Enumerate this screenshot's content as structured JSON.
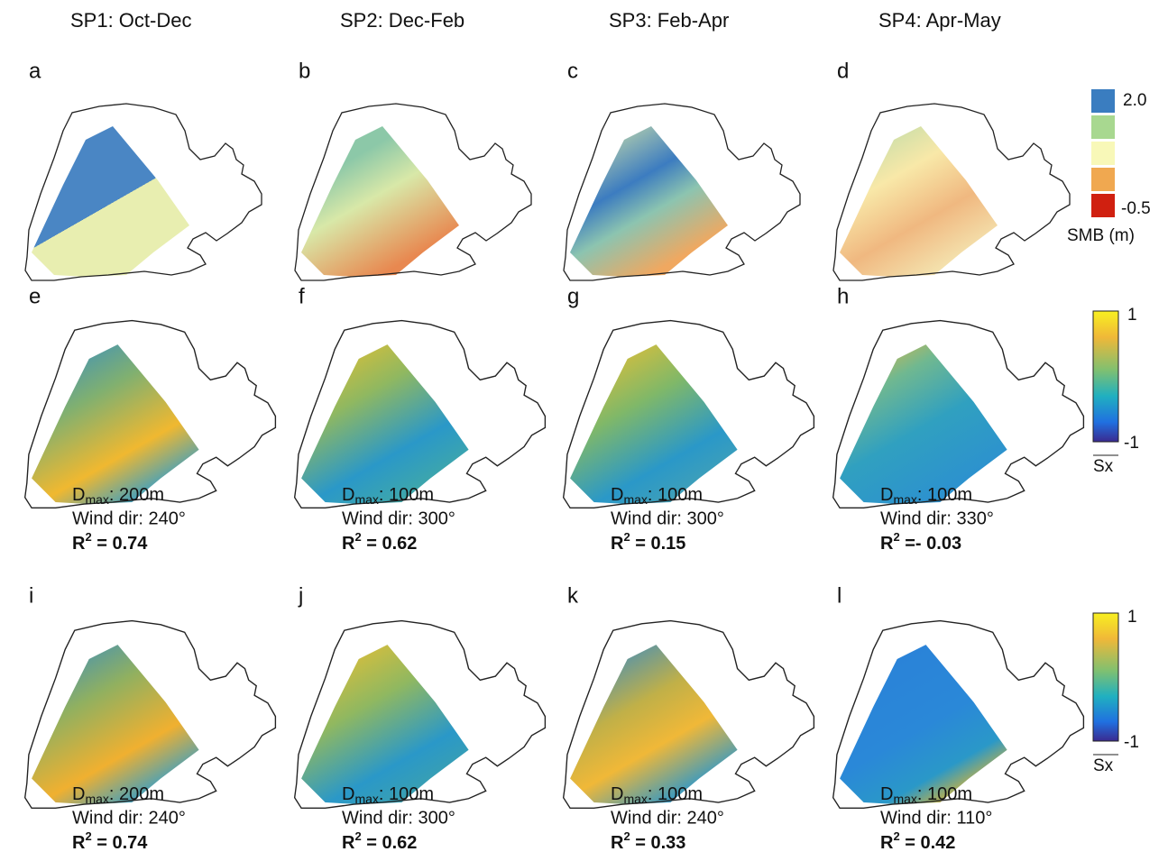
{
  "columns": [
    {
      "title": "SP1: Oct-Dec"
    },
    {
      "title": "SP2: Dec-Feb"
    },
    {
      "title": "SP3: Feb-Apr"
    },
    {
      "title": "SP4: Apr-May"
    }
  ],
  "panels": [
    {
      "label": "a"
    },
    {
      "label": "b"
    },
    {
      "label": "c"
    },
    {
      "label": "d"
    },
    {
      "label": "e"
    },
    {
      "label": "f"
    },
    {
      "label": "g"
    },
    {
      "label": "h"
    },
    {
      "label": "i"
    },
    {
      "label": "j"
    },
    {
      "label": "k"
    },
    {
      "label": "l"
    }
  ],
  "captions": [
    {
      "dmax_prefix": "D",
      "dmax_sub": "max",
      "dmax_rest": ": 200m",
      "wind": "Wind dir: 240°",
      "r2_prefix": "R",
      "r2_sup": "2",
      "r2_rest": " = 0.74"
    },
    {
      "dmax_prefix": "D",
      "dmax_sub": "max",
      "dmax_rest": ": 100m",
      "wind": "Wind dir: 300°",
      "r2_prefix": "R",
      "r2_sup": "2",
      "r2_rest": " = 0.62"
    },
    {
      "dmax_prefix": "D",
      "dmax_sub": "max",
      "dmax_rest": ": 100m",
      "wind": "Wind dir: 300°",
      "r2_prefix": "R",
      "r2_sup": "2",
      "r2_rest": " = 0.15"
    },
    {
      "dmax_prefix": "D",
      "dmax_sub": "max",
      "dmax_rest": ": 100m",
      "wind": "Wind dir: 330°",
      "r2_prefix": "R",
      "r2_sup": "2",
      "r2_rest": " =- 0.03"
    },
    {
      "dmax_prefix": "D",
      "dmax_sub": "max",
      "dmax_rest": ": 200m",
      "wind": "Wind dir: 240°",
      "r2_prefix": "R",
      "r2_sup": "2",
      "r2_rest": " = 0.74"
    },
    {
      "dmax_prefix": "D",
      "dmax_sub": "max",
      "dmax_rest": ": 100m",
      "wind": "Wind dir: 300°",
      "r2_prefix": "R",
      "r2_sup": "2",
      "r2_rest": " = 0.62"
    },
    {
      "dmax_prefix": "D",
      "dmax_sub": "max",
      "dmax_rest": ": 100m",
      "wind": "Wind dir: 240°",
      "r2_prefix": "R",
      "r2_sup": "2",
      "r2_rest": " = 0.33"
    },
    {
      "dmax_prefix": "D",
      "dmax_sub": "max",
      "dmax_rest": ": 100m",
      "wind": "Wind dir: 110°",
      "r2_prefix": "R",
      "r2_sup": "2",
      "r2_rest": " = 0.42"
    }
  ],
  "legends": {
    "smb": {
      "max": "2.0",
      "min": "-0.5",
      "title": "SMB (m)"
    },
    "sx": [
      {
        "max": "1",
        "min": "-1",
        "title": "Sx"
      },
      {
        "max": "1",
        "min": "-1",
        "title": "Sx"
      }
    ]
  }
}
